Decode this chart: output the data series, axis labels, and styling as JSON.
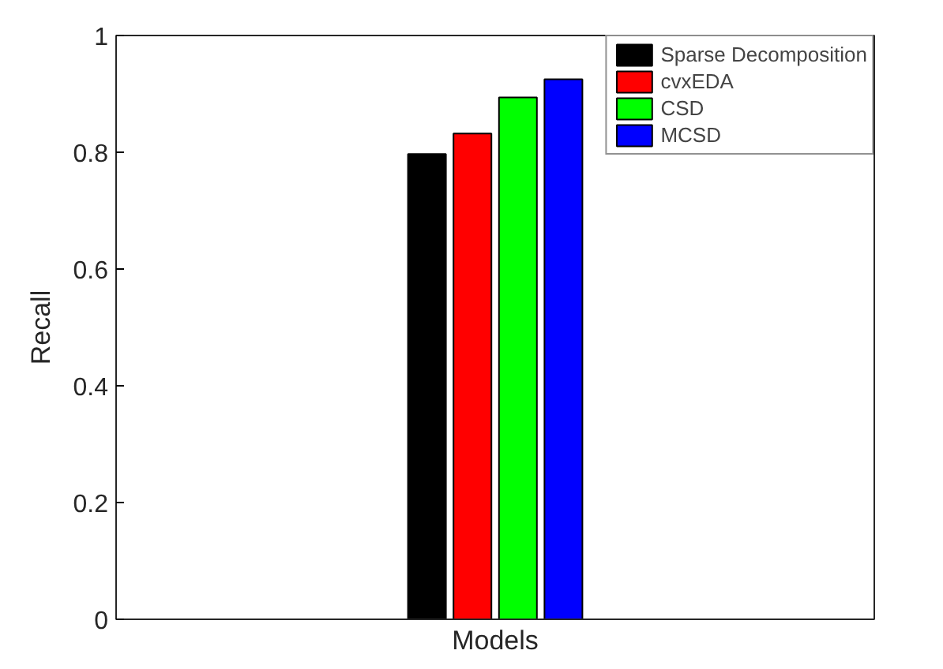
{
  "chart_data": {
    "type": "bar",
    "xlabel": "Models",
    "ylabel": "Recall",
    "categories": [
      null
    ],
    "series": [
      {
        "name": "Sparse Decomposition",
        "color": "#000000",
        "values": [
          0.797
        ]
      },
      {
        "name": "cvxEDA",
        "color": "#ff0000",
        "values": [
          0.832
        ]
      },
      {
        "name": "CSD",
        "color": "#00ff00",
        "values": [
          0.894
        ]
      },
      {
        "name": "MCSD",
        "color": "#0000ff",
        "values": [
          0.925
        ]
      }
    ],
    "ylim": [
      0,
      1
    ],
    "yticks": [
      0,
      0.2,
      0.4,
      0.6,
      0.8,
      1
    ],
    "grid": false,
    "legend": "top right"
  }
}
